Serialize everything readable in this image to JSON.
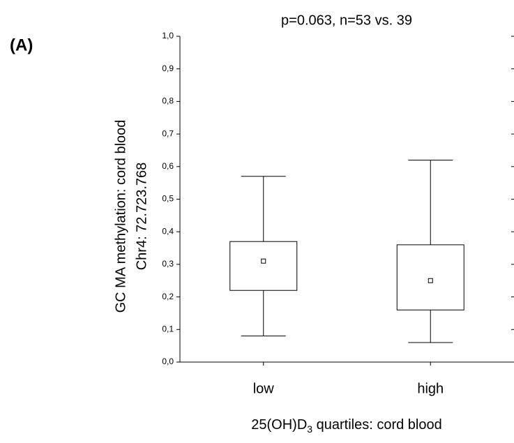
{
  "chart_data": {
    "type": "box",
    "panel_label": "(A)",
    "title": "p=0.063, n=53 vs. 39",
    "y_label": [
      "GC MA methylation: cord blood",
      "Chr4: 72.723.768"
    ],
    "x_label": [
      "25(OH)D",
      "3",
      " quartiles: cord blood"
    ],
    "categories": [
      "low",
      "high"
    ],
    "boxes": [
      {
        "min": 0.08,
        "q1": 0.22,
        "center": 0.31,
        "q3": 0.37,
        "max": 0.57
      },
      {
        "min": 0.06,
        "q1": 0.16,
        "center": 0.25,
        "q3": 0.36,
        "max": 0.62
      }
    ],
    "ylim": [
      0,
      1
    ],
    "yticks": [
      {
        "value": 0,
        "label": "0,0"
      },
      {
        "value": 0.1,
        "label": "0,1"
      },
      {
        "value": 0.2,
        "label": "0,2"
      },
      {
        "value": 0.3,
        "label": "0,3"
      },
      {
        "value": 0.4,
        "label": "0,4"
      },
      {
        "value": 0.5,
        "label": "0,5"
      },
      {
        "value": 0.6,
        "label": "0,6"
      },
      {
        "value": 0.7,
        "label": "0,7"
      },
      {
        "value": 0.8,
        "label": "0,8"
      },
      {
        "value": 0.9,
        "label": "0,9"
      },
      {
        "value": 1,
        "label": "1,0"
      }
    ],
    "color": "#000000"
  }
}
